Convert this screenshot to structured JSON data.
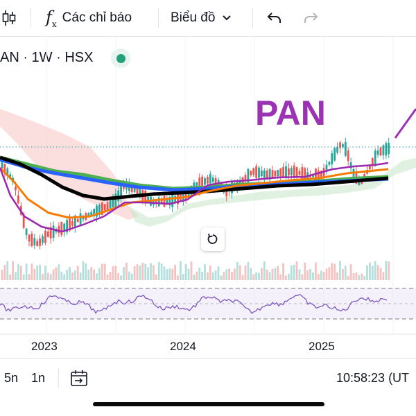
{
  "toolbar": {
    "indicators_label": "Các chỉ báo",
    "chart_type_label": "Biểu đồ",
    "icons": [
      "candlestick-icon",
      "function-icon",
      "chevron-down-icon",
      "undo-icon",
      "redo-icon"
    ]
  },
  "symbol": {
    "text": "AN · 1W · HSX",
    "status_color": "#22a17a"
  },
  "annotation": {
    "text": "PAN",
    "color": "#9b32b4"
  },
  "time_axis": {
    "labels": [
      "2023",
      "2024",
      "2025"
    ]
  },
  "bottom_bar": {
    "ranges": [
      "5n",
      "1n"
    ],
    "time": "10:58:23 (UT"
  },
  "colors": {
    "up": "#26a69a",
    "down": "#ef5350",
    "ma_black": "#000000",
    "ma_blue": "#2962ff",
    "ma_green": "#4caf50",
    "ma_orange": "#f57c00",
    "ma_purple": "#9c27b0",
    "rsi": "#7e57c2",
    "cloud_red": "#f8c5c5",
    "cloud_green": "#c8e6c9"
  }
}
